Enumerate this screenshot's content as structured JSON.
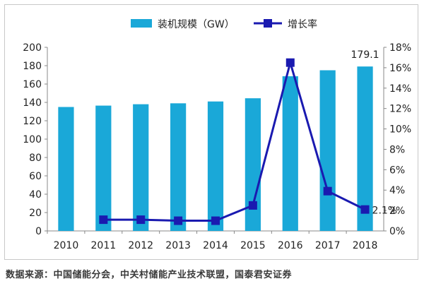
{
  "chart_data": {
    "type": "bar",
    "categories": [
      "2010",
      "2011",
      "2012",
      "2013",
      "2014",
      "2015",
      "2016",
      "2017",
      "2018"
    ],
    "series": [
      {
        "name": "装机规模（GW）",
        "type": "bar",
        "axis": "left",
        "color": "#1aa8d8",
        "values": [
          135,
          136.5,
          138,
          139,
          141,
          144.5,
          168.5,
          175,
          179.1
        ]
      },
      {
        "name": "增长率",
        "type": "line",
        "axis": "right",
        "color": "#1a1ab0",
        "values": [
          null,
          1.1,
          1.1,
          1.0,
          1.0,
          2.5,
          16.5,
          3.9,
          2.1
        ]
      }
    ],
    "left_axis": {
      "ylim": [
        0,
        200
      ],
      "ticks": [
        "0",
        "20",
        "40",
        "60",
        "80",
        "100",
        "120",
        "140",
        "160",
        "180",
        "200"
      ]
    },
    "right_axis": {
      "ylim": [
        0,
        18
      ],
      "ticks": [
        "0%",
        "2%",
        "4%",
        "6%",
        "8%",
        "10%",
        "12%",
        "14%",
        "16%",
        "18%"
      ]
    },
    "data_labels": [
      {
        "series": 0,
        "index": 8,
        "text": "179.1"
      },
      {
        "series": 1,
        "index": 8,
        "text": "2.1%"
      }
    ],
    "legend_position": "top",
    "grid": false
  },
  "source_note": "数据来源：中国储能分会，中关村储能产业技术联盟，国泰君安证券"
}
